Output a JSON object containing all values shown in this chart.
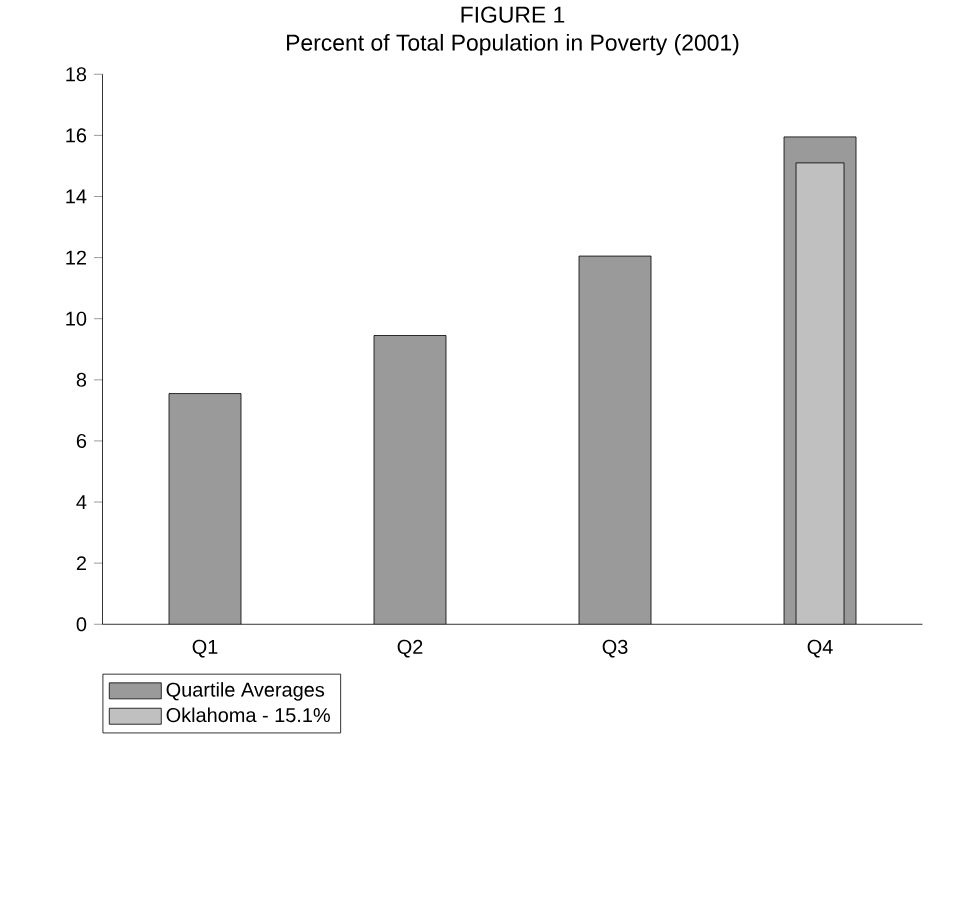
{
  "chart_data": {
    "type": "bar",
    "title": "FIGURE 1",
    "subtitle": "Percent of Total Population in Poverty (2001)",
    "categories": [
      "Q1",
      "Q2",
      "Q3",
      "Q4"
    ],
    "series": [
      {
        "name": "Quartile Averages",
        "color": "#9a9a9a",
        "values": [
          7.55,
          9.45,
          12.05,
          15.95
        ]
      },
      {
        "name": "Oklahoma - 15.1%",
        "color": "#c0c0c0",
        "values": [
          null,
          null,
          null,
          15.1
        ]
      }
    ],
    "ylim": [
      0,
      18
    ],
    "yticks": [
      0,
      2,
      4,
      6,
      8,
      10,
      12,
      14,
      16,
      18
    ],
    "grid": false,
    "legend": "bottom left"
  }
}
